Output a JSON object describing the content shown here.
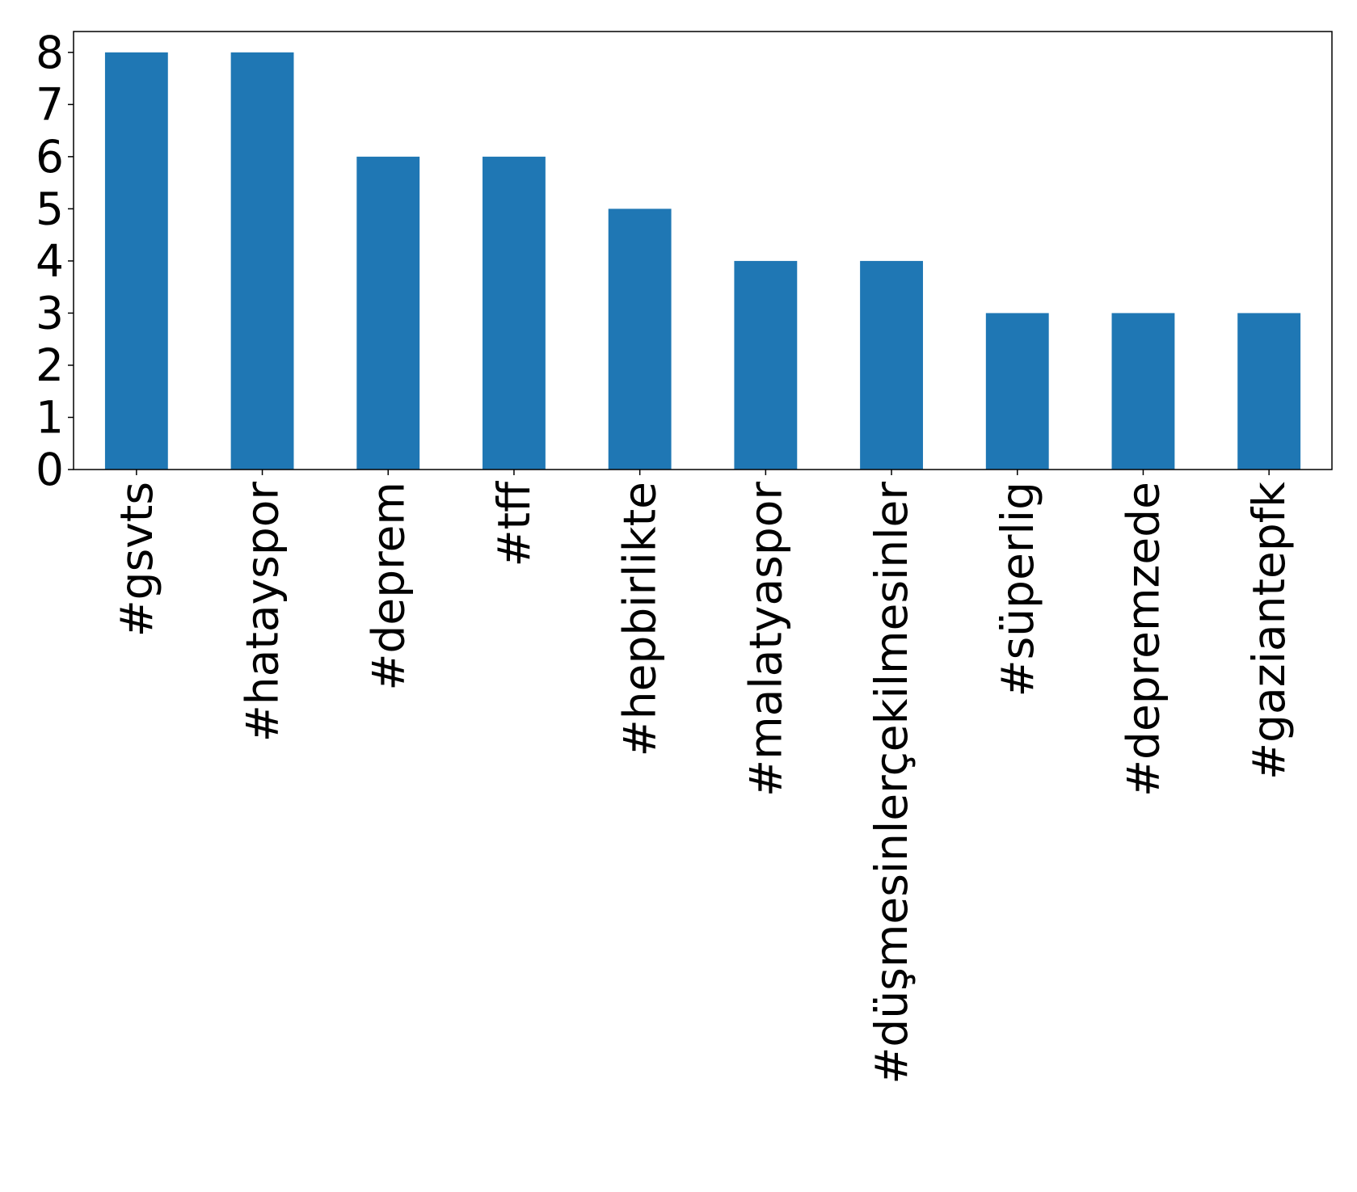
{
  "chart_data": {
    "type": "bar",
    "title": "",
    "xlabel": "",
    "ylabel": "",
    "categories": [
      "#gsvts",
      "#hatayspor",
      "#deprem",
      "#tff",
      "#hepbirlikte",
      "#malatyaspor",
      "#düşmesinlerçekilmesinler",
      "#süperlig",
      "#depremzede",
      "#gaziantepfk"
    ],
    "values": [
      8,
      8,
      6,
      6,
      5,
      4,
      4,
      3,
      3,
      3
    ],
    "ylim": [
      0,
      8.4
    ],
    "yticks": [
      0,
      1,
      2,
      3,
      4,
      5,
      6,
      7,
      8
    ],
    "bar_color": "#1f77b4",
    "grid": false,
    "legend": false
  }
}
